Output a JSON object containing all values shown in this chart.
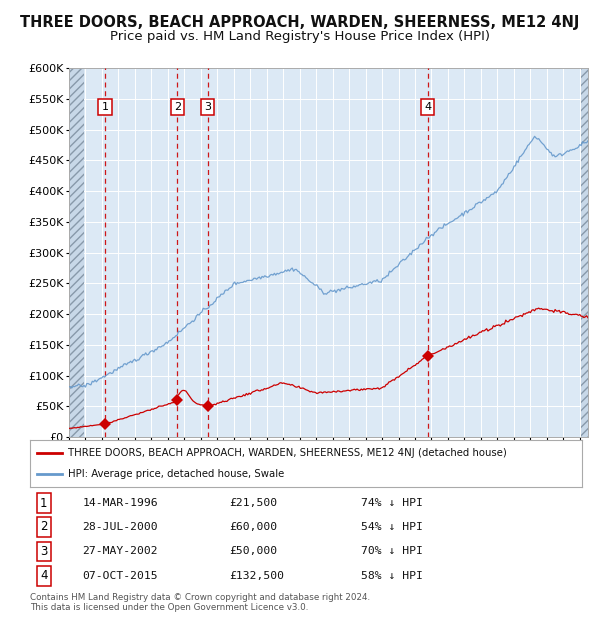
{
  "title": "THREE DOORS, BEACH APPROACH, WARDEN, SHEERNESS, ME12 4NJ",
  "subtitle": "Price paid vs. HM Land Registry's House Price Index (HPI)",
  "title_fontsize": 10.5,
  "subtitle_fontsize": 9.5,
  "background_color": "#ffffff",
  "plot_bg_color": "#dce9f5",
  "grid_color": "#ffffff",
  "hatch_color": "#aabbcc",
  "ylim": [
    0,
    600000
  ],
  "yticks": [
    0,
    50000,
    100000,
    150000,
    200000,
    250000,
    300000,
    350000,
    400000,
    450000,
    500000,
    550000,
    600000
  ],
  "legend_entries": [
    "THREE DOORS, BEACH APPROACH, WARDEN, SHEERNESS, ME12 4NJ (detached house)",
    "HPI: Average price, detached house, Swale"
  ],
  "legend_colors": [
    "#cc0000",
    "#6699cc"
  ],
  "purchases": [
    {
      "date_num": 1996.19,
      "price": 21500,
      "label": "1"
    },
    {
      "date_num": 2000.57,
      "price": 60000,
      "label": "2"
    },
    {
      "date_num": 2002.41,
      "price": 50000,
      "label": "3"
    },
    {
      "date_num": 2015.77,
      "price": 132500,
      "label": "4"
    }
  ],
  "vline_dates": [
    1996.19,
    2000.57,
    2002.41,
    2015.77
  ],
  "table_rows": [
    {
      "num": "1",
      "date": "14-MAR-1996",
      "price": "£21,500",
      "hpi": "74% ↓ HPI"
    },
    {
      "num": "2",
      "date": "28-JUL-2000",
      "price": "£60,000",
      "hpi": "54% ↓ HPI"
    },
    {
      "num": "3",
      "date": "27-MAY-2002",
      "price": "£50,000",
      "hpi": "70% ↓ HPI"
    },
    {
      "num": "4",
      "date": "07-OCT-2015",
      "price": "£132,500",
      "hpi": "58% ↓ HPI"
    }
  ],
  "footer": "Contains HM Land Registry data © Crown copyright and database right 2024.\nThis data is licensed under the Open Government Licence v3.0.",
  "xmin": 1994.0,
  "xmax": 2025.5,
  "hatch_left_end": 1994.92,
  "hatch_right_start": 2025.08
}
